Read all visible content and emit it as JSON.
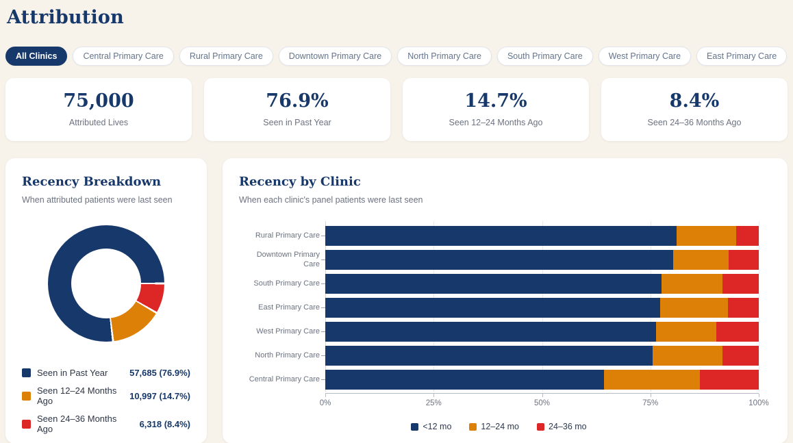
{
  "page": {
    "title": "Attribution"
  },
  "colors": {
    "navy": "#17386a",
    "orange": "#dd8007",
    "red": "#dd2727",
    "background": "#f7f2ea",
    "card": "#ffffff",
    "muted_text": "#6b7280"
  },
  "filters": {
    "chips": [
      {
        "label": "All Clinics",
        "active": true
      },
      {
        "label": "Central Primary Care",
        "active": false
      },
      {
        "label": "Rural Primary Care",
        "active": false
      },
      {
        "label": "Downtown Primary Care",
        "active": false
      },
      {
        "label": "North Primary Care",
        "active": false
      },
      {
        "label": "South Primary Care",
        "active": false
      },
      {
        "label": "West Primary Care",
        "active": false
      },
      {
        "label": "East Primary Care",
        "active": false
      }
    ]
  },
  "stats": [
    {
      "value": "75,000",
      "label": "Attributed Lives"
    },
    {
      "value": "76.9%",
      "label": "Seen in Past Year"
    },
    {
      "value": "14.7%",
      "label": "Seen 12–24 Months Ago"
    },
    {
      "value": "8.4%",
      "label": "Seen 24–36 Months Ago"
    }
  ],
  "recency_breakdown": {
    "title": "Recency Breakdown",
    "subtitle": "When attributed patients were last seen",
    "legend": [
      {
        "label": "Seen in Past Year",
        "value": "57,685 (76.9%)",
        "color": "#17386a"
      },
      {
        "label": "Seen 12–24 Months Ago",
        "value": "10,997 (14.7%)",
        "color": "#dd8007"
      },
      {
        "label": "Seen 24–36 Months Ago",
        "value": "6,318 (8.4%)",
        "color": "#dd2727"
      }
    ]
  },
  "recency_by_clinic": {
    "title": "Recency by Clinic",
    "subtitle": "When each clinic's panel patients were last seen"
  },
  "chart_data": [
    {
      "type": "pie",
      "subtype": "donut",
      "title": "Recency Breakdown",
      "labels": [
        "Seen in Past Year",
        "Seen 12–24 Months Ago",
        "Seen 24–36 Months Ago"
      ],
      "values": [
        57685,
        10997,
        6318
      ],
      "percents": [
        76.9,
        14.7,
        8.4
      ],
      "colors": [
        "#17386a",
        "#dd8007",
        "#dd2727"
      ],
      "inner_radius_ratio": 0.6,
      "legend_position": "bottom"
    },
    {
      "type": "bar",
      "subtype": "horizontal-stacked",
      "title": "Recency by Clinic",
      "categories": [
        "Rural Primary Care",
        "Downtown Primary Care",
        "South Primary Care",
        "East Primary Care",
        "West Primary Care",
        "North Primary Care",
        "Central Primary Care"
      ],
      "series": [
        {
          "name": "<12 mo",
          "color": "#17386a",
          "values": [
            81.0,
            80.3,
            77.6,
            77.3,
            76.3,
            75.5,
            64.3
          ]
        },
        {
          "name": "12–24 mo",
          "color": "#dd8007",
          "values": [
            13.8,
            12.7,
            14.0,
            15.6,
            13.9,
            16.2,
            22.1
          ]
        },
        {
          "name": "24–36 mo",
          "color": "#dd2727",
          "values": [
            5.2,
            7.0,
            8.4,
            7.1,
            9.8,
            8.3,
            13.6
          ]
        }
      ],
      "x_ticks": [
        "0%",
        "25%",
        "50%",
        "75%",
        "100%"
      ],
      "x_tick_positions": [
        0,
        25,
        50,
        75,
        100
      ],
      "xlim": [
        0,
        100
      ],
      "grid": true,
      "legend_position": "bottom"
    }
  ]
}
